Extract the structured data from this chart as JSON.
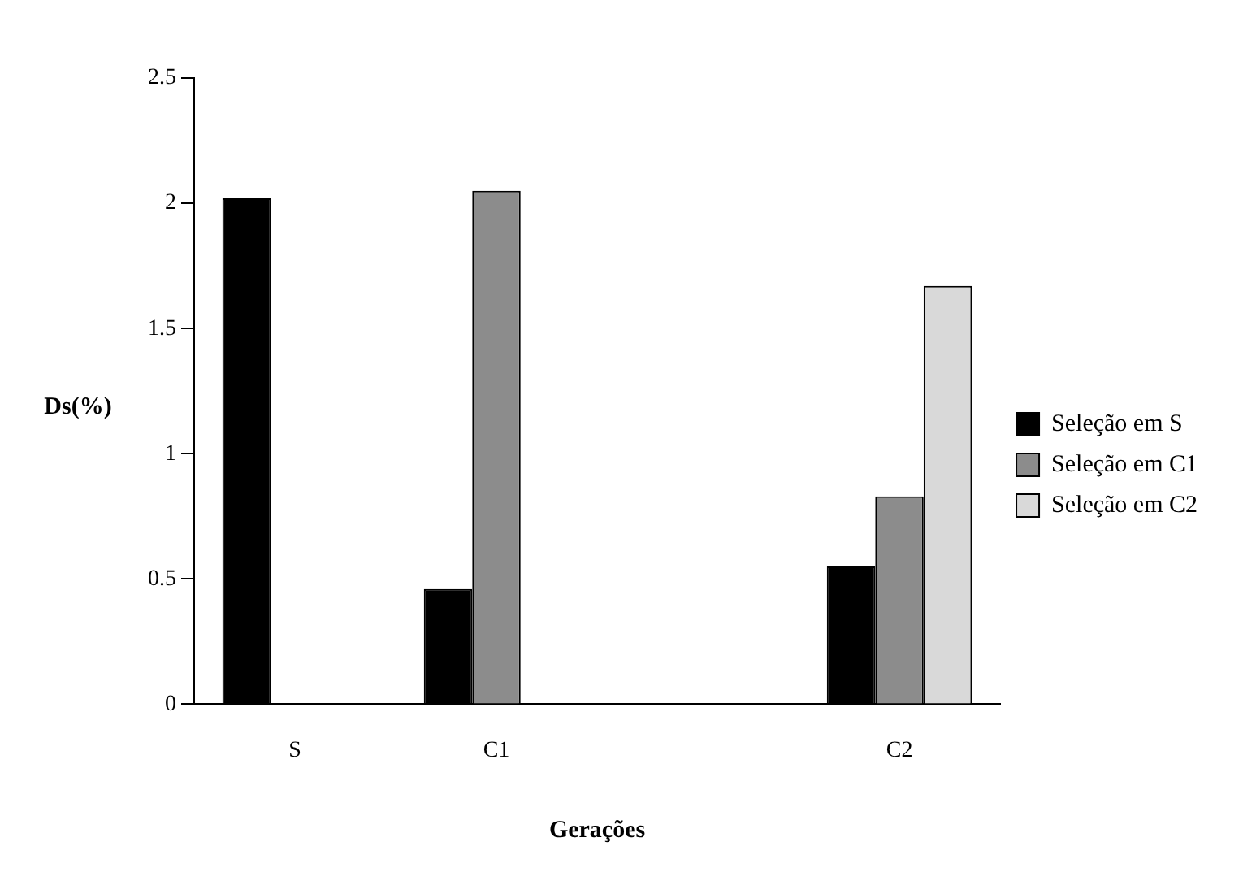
{
  "chart_data": {
    "type": "bar",
    "xlabel": "Gerações",
    "ylabel": "Ds(%)",
    "categories": [
      "S",
      "C1",
      null,
      "C2"
    ],
    "series": [
      {
        "name": "Seleção em S",
        "color": "#000000",
        "values": [
          2.02,
          0.46,
          null,
          0.55
        ]
      },
      {
        "name": "Seleção em C1",
        "color": "#8c8c8c",
        "values": [
          null,
          2.05,
          null,
          0.83
        ]
      },
      {
        "name": "Seleção em C2",
        "color": "#d9d9d9",
        "values": [
          null,
          null,
          null,
          1.67
        ]
      }
    ],
    "ylim": [
      0,
      2.5
    ],
    "yticks": [
      0,
      0.5,
      1,
      1.5,
      2,
      2.5
    ],
    "grid": false,
    "legend": "right"
  }
}
